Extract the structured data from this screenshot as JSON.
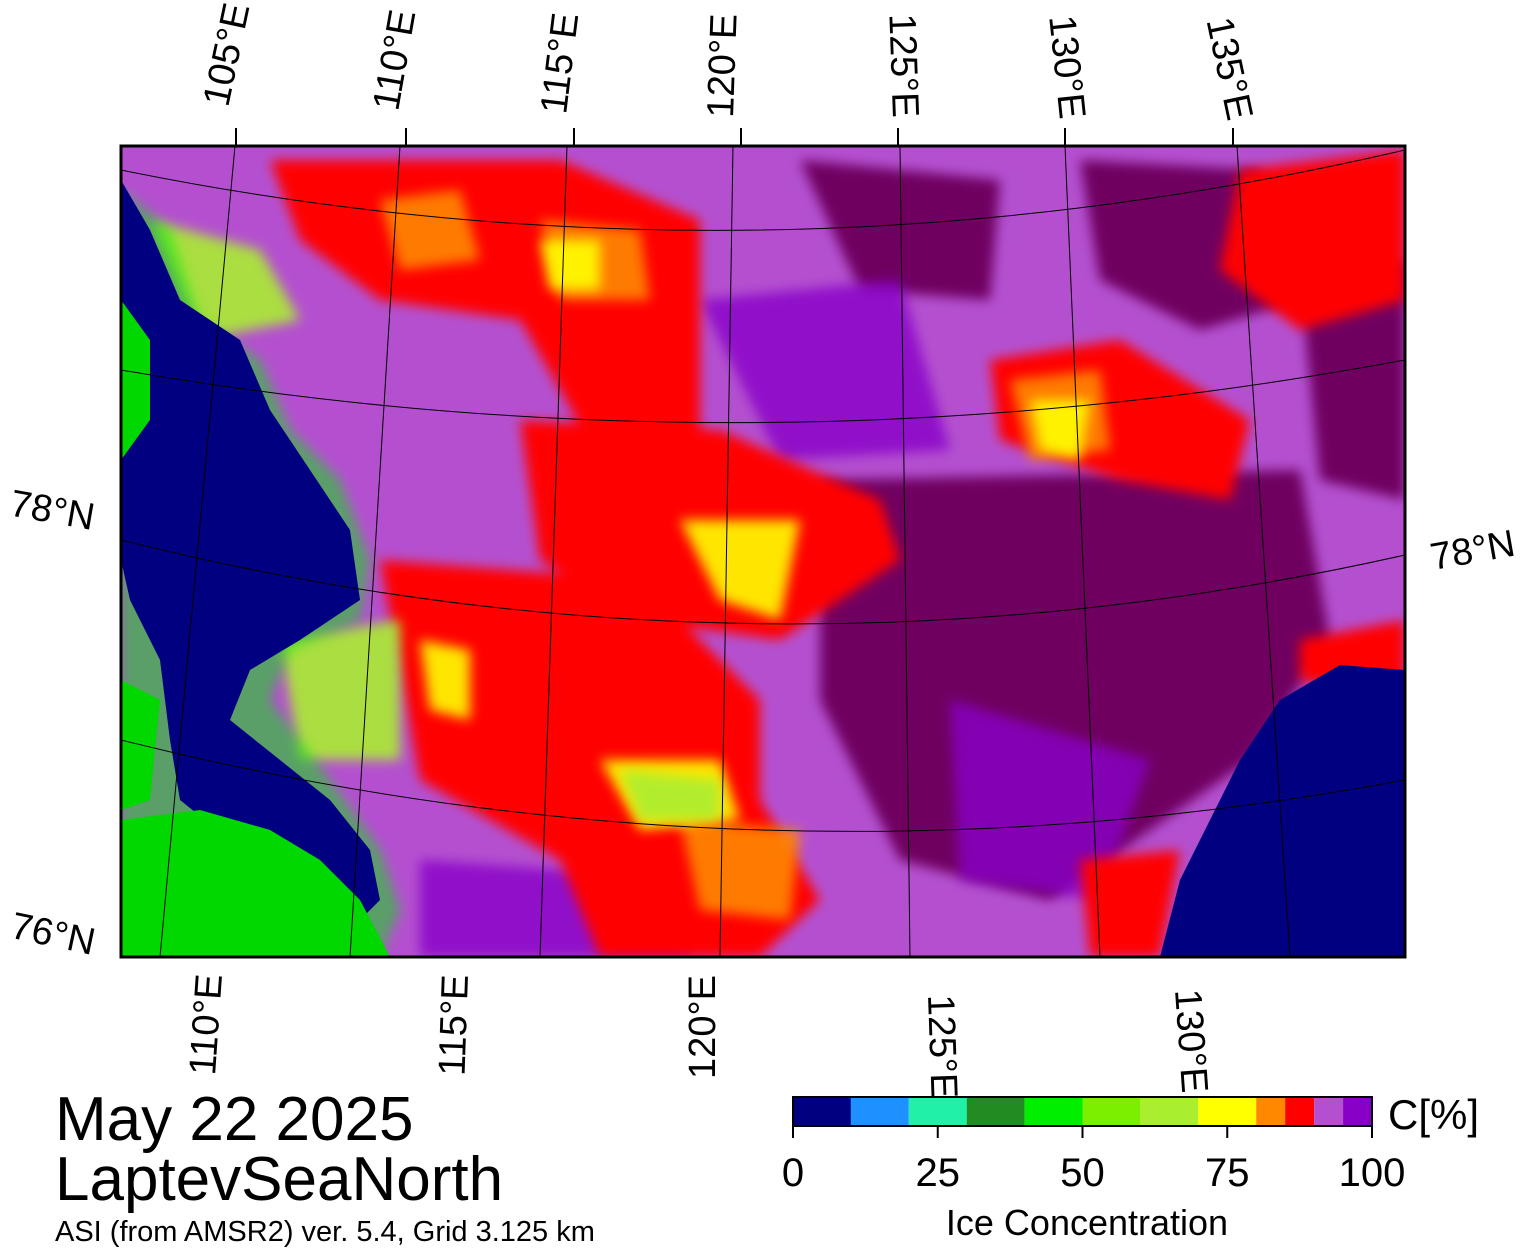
{
  "map": {
    "top_longitude_labels": [
      "105°E",
      "110°E",
      "115°E",
      "120°E",
      "125°E",
      "130°E",
      "135°E"
    ],
    "bottom_longitude_labels": [
      "110°E",
      "115°E",
      "120°E",
      "125°E",
      "130°E"
    ],
    "left_latitude_labels": [
      "78°N",
      "76°N"
    ],
    "right_latitude_labels": [
      "78°N"
    ]
  },
  "caption": {
    "date": "May 22 2025",
    "region": "LaptevSeaNorth",
    "source": "ASI (from AMSR2) ver. 5.4,  Grid 3.125 km"
  },
  "colorbar": {
    "unit_label": "C[%]",
    "title": "Ice Concentration",
    "range": [
      0,
      100
    ],
    "ticks": [
      0,
      25,
      50,
      75,
      100
    ],
    "levels": [
      0,
      10,
      20,
      30,
      40,
      50,
      60,
      70,
      80,
      85,
      90,
      95,
      100
    ],
    "colors": [
      "#000080",
      "#1e90ff",
      "#20f0a8",
      "#228b22",
      "#00ee00",
      "#7cee00",
      "#aaee30",
      "#ffff00",
      "#ff8800",
      "#ff0000",
      "#b450d0",
      "#8800c8"
    ]
  }
}
